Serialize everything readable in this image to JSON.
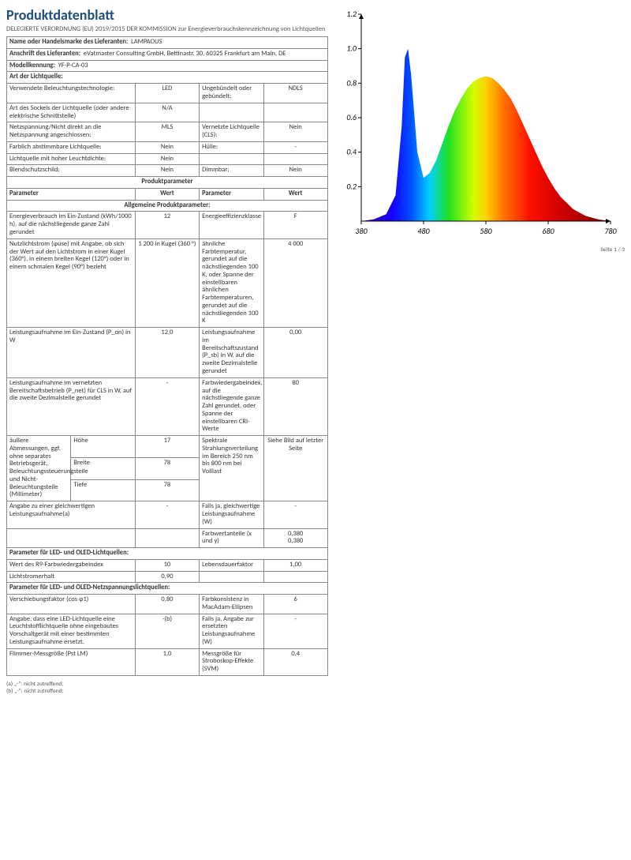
{
  "doc": {
    "title": "Produktdatenblatt",
    "subtitle": "DELEGIERTE VERORDNUNG (EU) 2019/2015 DER KOMMISSION zur Energieverbrauchskennzeichnung von Lichtquellen"
  },
  "header_rows": {
    "supplier_name_label": "Name oder Handelsmarke des Lieferanten:",
    "supplier_name": "LAMPAOUS",
    "supplier_addr_label": "Anschrift des Lieferanten:",
    "supplier_addr": "eVatmaster Consulting GmbH, Bettinastr. 30, 60325 Frankfurt am Main, DE",
    "model_label": "Modellkennung:",
    "model": "YF-P-CA-03",
    "type_label": "Art der Lichtquelle:"
  },
  "type_rows": [
    {
      "l": "Verwendete Beleuchtungstechnologie:",
      "v1": "LED",
      "l2": "Ungebündelt oder gebündelt:",
      "v2": "NDLS"
    },
    {
      "l": "Art des Sockels der Lichtquelle (oder andere elektrische Schnittstelle)",
      "v1": "N/A",
      "l2": "",
      "v2": ""
    },
    {
      "l": "Netzspannung/Nicht direkt an die Netzspannung angeschlossen:",
      "v1": "MLS",
      "l2": "Vernetzte Lichtquelle (CLS):",
      "v2": "Nein"
    },
    {
      "l": "Farblich abstimmbare Lichtquelle:",
      "v1": "Nein",
      "l2": "Hülle:",
      "v2": "-"
    },
    {
      "l": "Lichtquelle mit hoher Leuchtdichte:",
      "v1": "Nein",
      "l2": "",
      "v2": ""
    },
    {
      "l": "Blendschutzschild:",
      "v1": "Nein",
      "l2": "Dimmbar:",
      "v2": "Nein"
    }
  ],
  "param_header": {
    "section": "Produktparameter",
    "p": "Parameter",
    "w": "Wert",
    "general": "Allgemeine Produktparameter:"
  },
  "general_rows": [
    {
      "l": "Energieverbrauch im Ein-Zustand (kWh/1000 h), auf die nächstliegende ganze Zahl gerundet",
      "v1": "12",
      "l2": "Energieeffizienzklasse",
      "v2": "F"
    },
    {
      "l": "Nutzlichtstrom (φuse) mit Angabe, ob sich der Wert auf den Lichtstrom in einer Kugel (360°), in einem breiten Kegel (120°) oder in einem schmalen Kegel (90°) bezieht",
      "v1": "1 200 in Kugel (360 °)",
      "l2": "ähnliche Farbtemperatur, gerundet auf die nächstliegenden 100 K, oder Spanne der einstellbaren ähnlichen Farbtemperaturen, gerundet auf die nächstliegenden 100 K",
      "v2": "4 000"
    },
    {
      "l": "Leistungsaufnahme im Ein-Zustand (P_on) in W",
      "v1": "12,0",
      "l2": "Leistungsaufnahme im Bereitschaftszustand (P_sb) in W, auf die zweite Dezimalstelle gerundet",
      "v2": "0,00"
    },
    {
      "l": "Leistungsaufnahme im vernetzten Bereitschaftsbetrieb (P_net) für CLS in W, auf die zweite Dezimalstelle gerundet",
      "v1": "-",
      "l2": "Farbwiedergabeindex, auf die nächstliegende ganze Zahl gerundet, oder Spanne der einstellbaren CRI-Werte",
      "v2": "80"
    }
  ],
  "dims": {
    "label": "äußere Abmessungen, ggf. ohne separates Betriebsgerät, Beleuchtungssteuerungsteile und Nicht-Beleuchtungsteile (Millimeter)",
    "h_label": "Höhe",
    "h": "17",
    "b_label": "Breite",
    "b": "78",
    "t_label": "Tiefe",
    "t": "78",
    "spectral_label": "Spektrale Strahlungsverteilung im Bereich 250 nm bis 800 nm bei Volllast",
    "spectral_val": "Siehe Bild auf letzter Seite"
  },
  "equiv_rows": [
    {
      "l": "Angabe zu einer gleichwertigen Leistungsaufnahme(a)",
      "v1": "-",
      "l2": "Falls ja, gleichwertige Leistungsaufnahme (W)",
      "v2": "-"
    },
    {
      "l": "",
      "v1": "",
      "l2": "Farbwertanteile (x und y)",
      "v2": "0,380\n0,380"
    }
  ],
  "led_header": "Parameter für LED- und OLED-Lichtquellen:",
  "led_rows": [
    {
      "l": "Wert des R9-Farbwiedergabeindex",
      "v1": "10",
      "l2": "Lebensdauerfaktor",
      "v2": "1,00"
    },
    {
      "l": "Lichtstromerhalt",
      "v1": "0,90",
      "l2": "",
      "v2": ""
    }
  ],
  "mains_header": "Parameter für LED- und OLED-Netzspannungslichtquellen:",
  "mains_rows": [
    {
      "l": "Verschiebungsfaktor (cos φ1)",
      "v1": "0,80",
      "l2": "Farbkonsistenz in MacAdam-Ellipsen",
      "v2": "6"
    },
    {
      "l": "Angabe, dass eine LED-Lichtquelle eine Leuchtstofflichtquelle ohne eingebautes Vorschaltgerät mit einer bestimmten Leistungsaufnahme ersetzt.",
      "v1": "-(b)",
      "l2": "Falls ja, Angabe zur ersetzten Leistungsaufnahme (W)",
      "v2": "-"
    },
    {
      "l": "Flimmer-Messgröße (Pst LM)",
      "v1": "1,0",
      "l2": "Messgröße für Stroboskop-Effekte (SVM)",
      "v2": "0,4"
    }
  ],
  "footnotes": {
    "a": "(a) „-\": nicht zutreffend;",
    "b": "(b) „-\": nicht zutreffend;"
  },
  "page_num": "Seite 1 / 3",
  "chart": {
    "type": "area-spectrum",
    "xlim": [
      380,
      780
    ],
    "ylim": [
      0,
      1.2
    ],
    "xticks": [
      380,
      480,
      580,
      680,
      780
    ],
    "yticks": [
      0.2,
      0.4,
      0.6,
      0.8,
      1.0,
      1.2
    ],
    "label_fontsize": 10,
    "background": "#ffffff",
    "axis_color": "#000000",
    "curve": [
      [
        380,
        0.0
      ],
      [
        400,
        0.01
      ],
      [
        420,
        0.04
      ],
      [
        435,
        0.15
      ],
      [
        445,
        0.55
      ],
      [
        450,
        0.95
      ],
      [
        455,
        1.0
      ],
      [
        460,
        0.85
      ],
      [
        470,
        0.4
      ],
      [
        480,
        0.25
      ],
      [
        490,
        0.28
      ],
      [
        500,
        0.35
      ],
      [
        510,
        0.45
      ],
      [
        520,
        0.55
      ],
      [
        530,
        0.64
      ],
      [
        540,
        0.71
      ],
      [
        550,
        0.77
      ],
      [
        560,
        0.81
      ],
      [
        570,
        0.83
      ],
      [
        580,
        0.84
      ],
      [
        590,
        0.83
      ],
      [
        600,
        0.8
      ],
      [
        610,
        0.76
      ],
      [
        620,
        0.71
      ],
      [
        630,
        0.64
      ],
      [
        640,
        0.56
      ],
      [
        650,
        0.48
      ],
      [
        660,
        0.4
      ],
      [
        670,
        0.32
      ],
      [
        680,
        0.25
      ],
      [
        690,
        0.19
      ],
      [
        700,
        0.14
      ],
      [
        720,
        0.07
      ],
      [
        740,
        0.03
      ],
      [
        760,
        0.01
      ],
      [
        780,
        0.0
      ]
    ],
    "gradient_stops": [
      {
        "wl": 380,
        "color": "#3b00a8"
      },
      {
        "wl": 430,
        "color": "#1500ff"
      },
      {
        "wl": 460,
        "color": "#0050ff"
      },
      {
        "wl": 490,
        "color": "#00d0ff"
      },
      {
        "wl": 520,
        "color": "#20e020"
      },
      {
        "wl": 560,
        "color": "#d0ff00"
      },
      {
        "wl": 580,
        "color": "#ffd000"
      },
      {
        "wl": 610,
        "color": "#ff7000"
      },
      {
        "wl": 650,
        "color": "#ff1000"
      },
      {
        "wl": 700,
        "color": "#d00000"
      },
      {
        "wl": 780,
        "color": "#800000"
      }
    ]
  }
}
